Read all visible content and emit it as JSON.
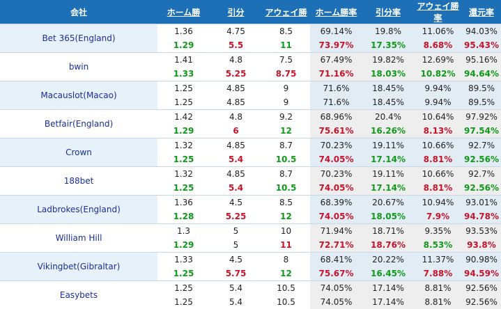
{
  "headers": [
    "会社",
    "ホーム勝",
    "引分",
    "アウェイ勝",
    "ホーム勝率",
    "引分率",
    "アウェイ勝率",
    "還元率"
  ],
  "colors": {
    "header_bg": "#1d6fb6",
    "up": "#0f9a1a",
    "down": "#c8142a",
    "company_text": "#1a2e9c"
  },
  "bookmakers": [
    {
      "name": "Bet 365(England)",
      "initial": [
        "1.36",
        "4.75",
        "8.5",
        "69.14%",
        "19.8%",
        "11.06%",
        "94.03%"
      ],
      "live": [
        "1.29",
        "5.5",
        "11",
        "73.97%",
        "17.35%",
        "8.68%",
        "95.43%"
      ],
      "live_colors": [
        "g",
        "r",
        "g",
        "r",
        "g",
        "r",
        "r"
      ]
    },
    {
      "name": "bwin",
      "initial": [
        "1.41",
        "4.8",
        "7.5",
        "67.49%",
        "19.82%",
        "12.69%",
        "95.16%"
      ],
      "live": [
        "1.33",
        "5.25",
        "8.75",
        "71.16%",
        "18.03%",
        "10.82%",
        "94.64%"
      ],
      "live_colors": [
        "g",
        "r",
        "r",
        "r",
        "g",
        "g",
        "g"
      ]
    },
    {
      "name": "Macauslot(Macao)",
      "initial": [
        "1.25",
        "4.85",
        "9",
        "71.6%",
        "18.45%",
        "9.94%",
        "89.5%"
      ],
      "live": [
        "1.25",
        "4.85",
        "9",
        "71.6%",
        "18.45%",
        "9.94%",
        "89.5%"
      ],
      "live_colors": [
        "n",
        "n",
        "n",
        "n",
        "n",
        "n",
        "n"
      ]
    },
    {
      "name": "Betfair(England)",
      "initial": [
        "1.42",
        "4.8",
        "9.2",
        "68.96%",
        "20.4%",
        "10.64%",
        "97.92%"
      ],
      "live": [
        "1.29",
        "6",
        "12",
        "75.61%",
        "16.26%",
        "8.13%",
        "97.54%"
      ],
      "live_colors": [
        "g",
        "r",
        "g",
        "r",
        "g",
        "r",
        "g"
      ]
    },
    {
      "name": "Crown",
      "initial": [
        "1.32",
        "4.85",
        "8.7",
        "70.23%",
        "19.11%",
        "10.66%",
        "92.7%"
      ],
      "live": [
        "1.25",
        "5.4",
        "10.5",
        "74.05%",
        "17.14%",
        "8.81%",
        "92.56%"
      ],
      "live_colors": [
        "g",
        "r",
        "g",
        "r",
        "g",
        "r",
        "g"
      ]
    },
    {
      "name": "188bet",
      "initial": [
        "1.32",
        "4.85",
        "8.7",
        "70.23%",
        "19.11%",
        "10.66%",
        "92.7%"
      ],
      "live": [
        "1.25",
        "5.4",
        "10.5",
        "74.05%",
        "17.14%",
        "8.81%",
        "92.56%"
      ],
      "live_colors": [
        "g",
        "r",
        "g",
        "r",
        "g",
        "r",
        "g"
      ]
    },
    {
      "name": "Ladbrokes(England)",
      "initial": [
        "1.36",
        "4.5",
        "8.5",
        "68.39%",
        "20.67%",
        "10.94%",
        "93.01%"
      ],
      "live": [
        "1.28",
        "5.25",
        "12",
        "74.05%",
        "18.05%",
        "7.9%",
        "94.78%"
      ],
      "live_colors": [
        "g",
        "r",
        "g",
        "r",
        "g",
        "r",
        "r"
      ]
    },
    {
      "name": "William Hill",
      "initial": [
        "1.3",
        "5",
        "10",
        "71.94%",
        "18.71%",
        "9.35%",
        "93.53%"
      ],
      "live": [
        "1.29",
        "5",
        "11",
        "72.71%",
        "18.76%",
        "8.53%",
        "93.8%"
      ],
      "live_colors": [
        "g",
        "n",
        "r",
        "r",
        "r",
        "g",
        "r"
      ]
    },
    {
      "name": "Vikingbet(Gibraltar)",
      "initial": [
        "1.33",
        "4.5",
        "8",
        "68.41%",
        "20.22%",
        "11.37%",
        "90.98%"
      ],
      "live": [
        "1.25",
        "5.75",
        "12",
        "75.67%",
        "16.45%",
        "7.88%",
        "94.59%"
      ],
      "live_colors": [
        "g",
        "r",
        "g",
        "r",
        "g",
        "r",
        "r"
      ]
    },
    {
      "name": "Easybets",
      "initial": [
        "1.25",
        "5.4",
        "10.5",
        "74.05%",
        "17.14%",
        "8.81%",
        "92.56%"
      ],
      "live": [
        "1.25",
        "5.4",
        "10.5",
        "74.05%",
        "17.14%",
        "8.81%",
        "92.56%"
      ],
      "live_colors": [
        "n",
        "n",
        "n",
        "n",
        "n",
        "n",
        "n"
      ]
    }
  ]
}
